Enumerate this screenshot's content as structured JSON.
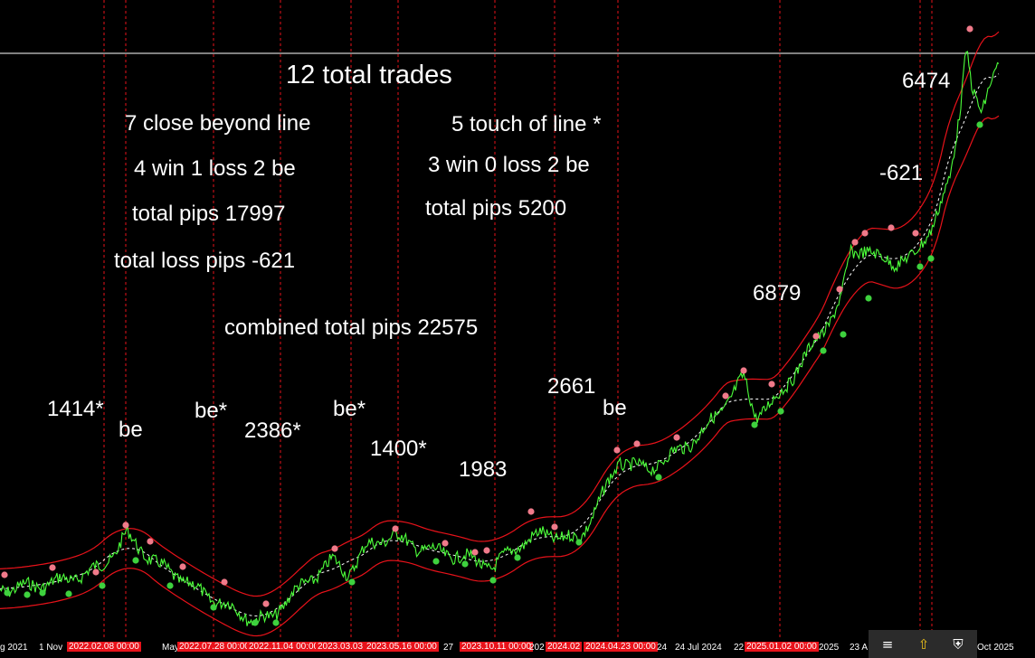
{
  "chart_data": {
    "type": "line",
    "title": "",
    "xlabel": "",
    "ylabel": "",
    "grid": false,
    "annotations_block": {
      "total_trades": "12 total trades",
      "close_beyond": "7 close  beyond line",
      "close_result": "4 win 1 loss 2 be",
      "close_pips": "total pips 17997",
      "close_loss": "total loss pips -621",
      "touch": "5 touch of line *",
      "touch_result": "3 win 0 loss 2 be",
      "touch_pips": "total pips 5200",
      "combined": "combined total pips 22575"
    },
    "trade_labels": [
      "1414*",
      "be",
      "be*",
      "2386*",
      "be*",
      "1400*",
      "1983",
      "2661",
      "be",
      "6879",
      "-621",
      "6474"
    ],
    "x_tick_labels": [
      "g 2021",
      "1 Nov",
      "May",
      "27",
      "202",
      "24",
      "24 Jul 2024",
      "22",
      "2025",
      "23 A",
      "Oct 2025"
    ],
    "vline_labels": [
      "2022.02.08 00:00",
      "2022.07.28 00:00",
      "2022.11.04 00:00",
      "2023.03.03",
      "2023.05.16 00:00",
      "2023.10.11 00:00",
      "2024.02",
      "2024.04.23 00:00",
      "2025.01.02 00:00"
    ],
    "colors": {
      "background": "#000000",
      "price": "#4cff3a",
      "bands": "#e8121a",
      "vlines": "#e8121a",
      "mid_line": "#ffffff",
      "peak_marker": "#f07a8a",
      "trough_marker": "#3ed13e"
    }
  },
  "taskbar": {
    "icons": [
      "network-icon",
      "update-arrow-icon",
      "security-shield-icon"
    ]
  }
}
